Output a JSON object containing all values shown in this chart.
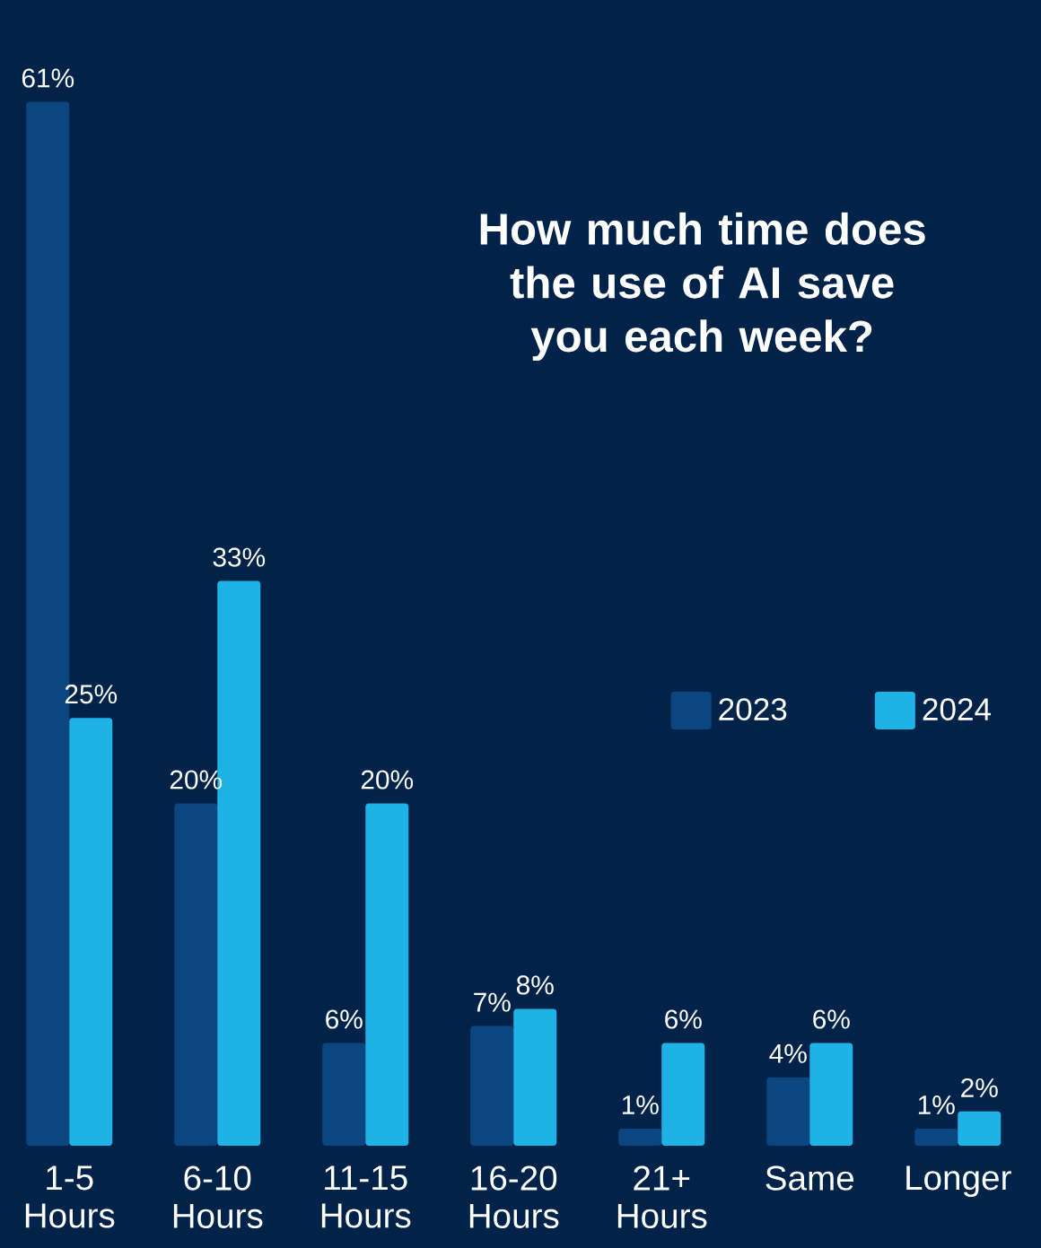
{
  "chart_data": {
    "type": "bar",
    "title": "How much time does the use of AI save you each week?",
    "categories": [
      "1-5 Hours",
      "6-10 Hours",
      "11-15 Hours",
      "16-20 Hours",
      "21+ Hours",
      "Same",
      "Longer"
    ],
    "series": [
      {
        "name": "2023",
        "color": "#0b4680",
        "values": [
          61,
          20,
          6,
          7,
          1,
          4,
          1
        ],
        "value_labels": [
          "61%",
          "20%",
          "6%",
          "7%",
          "1%",
          "4%",
          "1%"
        ]
      },
      {
        "name": "2024",
        "color": "#1fb2e6",
        "values": [
          25,
          33,
          20,
          8,
          6,
          6,
          2
        ],
        "value_labels": [
          "25%",
          "33%",
          "20%",
          "8%",
          "6%",
          "6%",
          "2%"
        ]
      }
    ],
    "legend": "right"
  }
}
